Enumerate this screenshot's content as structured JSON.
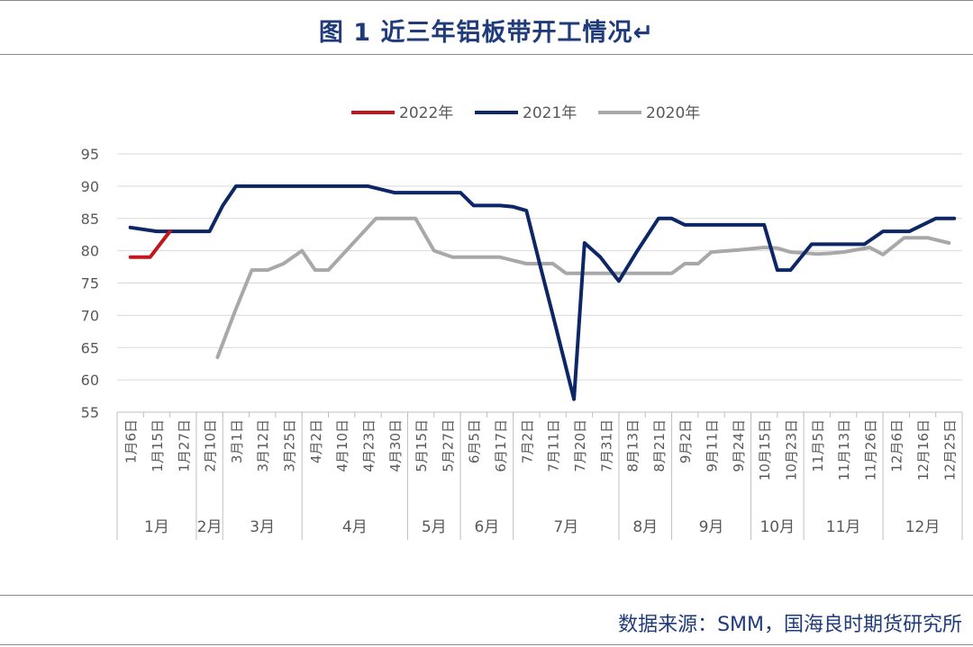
{
  "title": "图 1  近三年铝板带开工情况↵",
  "source": "数据来源：SMM，国海良时期货研究所",
  "chart_data": {
    "type": "line",
    "ylim": [
      55,
      95
    ],
    "yticks": [
      55,
      60,
      65,
      70,
      75,
      80,
      85,
      90,
      95
    ],
    "grid": true,
    "legend_position": "top",
    "x_labels": [
      "1月6日",
      "1月15日",
      "1月27日",
      "2月10日",
      "3月1日",
      "3月12日",
      "3月25日",
      "4月2日",
      "4月10日",
      "4月23日",
      "4月30日",
      "5月15日",
      "5月27日",
      "6月5日",
      "6月17日",
      "7月2日",
      "7月11日",
      "7月20日",
      "7月31日",
      "8月13日",
      "8月21日",
      "9月2日",
      "9月11日",
      "9月24日",
      "10月15日",
      "10月23日",
      "11月5日",
      "11月13日",
      "11月26日",
      "12月6日",
      "12月16日",
      "12月25日"
    ],
    "months": [
      {
        "label": "1月",
        "from": 0,
        "to": 2
      },
      {
        "label": "2月",
        "from": 3,
        "to": 3
      },
      {
        "label": "3月",
        "from": 4,
        "to": 6
      },
      {
        "label": "4月",
        "from": 7,
        "to": 10
      },
      {
        "label": "5月",
        "from": 11,
        "to": 12
      },
      {
        "label": "6月",
        "from": 13,
        "to": 14
      },
      {
        "label": "7月",
        "from": 15,
        "to": 18
      },
      {
        "label": "8月",
        "from": 19,
        "to": 20
      },
      {
        "label": "9月",
        "from": 21,
        "to": 23
      },
      {
        "label": "10月",
        "from": 24,
        "to": 25
      },
      {
        "label": "11月",
        "from": 26,
        "to": 28
      },
      {
        "label": "12月",
        "from": 29,
        "to": 31
      }
    ],
    "series": [
      {
        "name": "2022年",
        "color": "#c0161d",
        "points": [
          [
            0,
            79
          ],
          [
            0.75,
            79
          ],
          [
            1.5,
            83
          ]
        ]
      },
      {
        "name": "2021年",
        "color": "#0d2766",
        "points": [
          [
            0,
            83.6
          ],
          [
            1,
            83
          ],
          [
            2,
            83
          ],
          [
            3,
            83
          ],
          [
            3.5,
            87
          ],
          [
            4,
            90
          ],
          [
            5,
            90
          ],
          [
            6,
            90
          ],
          [
            7,
            90
          ],
          [
            8,
            90
          ],
          [
            9,
            90
          ],
          [
            10,
            89
          ],
          [
            11,
            89
          ],
          [
            12,
            89
          ],
          [
            12.5,
            89
          ],
          [
            13,
            87
          ],
          [
            14,
            87
          ],
          [
            14.5,
            86.8
          ],
          [
            15,
            86.2
          ],
          [
            15.5,
            78
          ],
          [
            16,
            70
          ],
          [
            16.8,
            57
          ],
          [
            17.2,
            81.2
          ],
          [
            17.8,
            79
          ],
          [
            18.5,
            75.3
          ],
          [
            19.2,
            80
          ],
          [
            20,
            85
          ],
          [
            20.5,
            85
          ],
          [
            21,
            84
          ],
          [
            22,
            84
          ],
          [
            23,
            84
          ],
          [
            24,
            84
          ],
          [
            24.5,
            77
          ],
          [
            25,
            77
          ],
          [
            25.8,
            81
          ],
          [
            26.8,
            81
          ],
          [
            27.8,
            81
          ],
          [
            28.5,
            83
          ],
          [
            29.5,
            83
          ],
          [
            30.5,
            85
          ],
          [
            31.2,
            85
          ]
        ]
      },
      {
        "name": "2020年",
        "color": "#a8a8a8",
        "points": [
          [
            3.3,
            63.5
          ],
          [
            4,
            71
          ],
          [
            4.6,
            77
          ],
          [
            5.2,
            77
          ],
          [
            5.8,
            78
          ],
          [
            6.5,
            80
          ],
          [
            7,
            77
          ],
          [
            7.5,
            77
          ],
          [
            8.4,
            81
          ],
          [
            9.3,
            85
          ],
          [
            10,
            85
          ],
          [
            10.8,
            85
          ],
          [
            11.5,
            80
          ],
          [
            12.2,
            79
          ],
          [
            13,
            79
          ],
          [
            14,
            79
          ],
          [
            14.5,
            78.5
          ],
          [
            15,
            78
          ],
          [
            15.5,
            78
          ],
          [
            16,
            78
          ],
          [
            16.5,
            76.5
          ],
          [
            17,
            76.5
          ],
          [
            18,
            76.5
          ],
          [
            18.5,
            76.5
          ],
          [
            19.5,
            76.5
          ],
          [
            20.5,
            76.5
          ],
          [
            21,
            78
          ],
          [
            21.5,
            78
          ],
          [
            22,
            79.8
          ],
          [
            23,
            80.1
          ],
          [
            24,
            80.5
          ],
          [
            24.5,
            80.4
          ],
          [
            25,
            79.8
          ],
          [
            26,
            79.5
          ],
          [
            26.5,
            79.6
          ],
          [
            27,
            79.8
          ],
          [
            28,
            80.5
          ],
          [
            28.5,
            79.4
          ],
          [
            29.3,
            82
          ],
          [
            30.2,
            82
          ],
          [
            31,
            81.2
          ]
        ]
      }
    ]
  }
}
